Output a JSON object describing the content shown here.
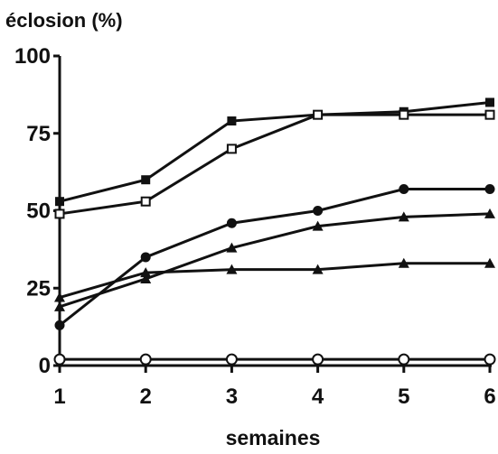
{
  "chart_data": {
    "type": "line",
    "ylabel": "éclosion (%)",
    "xlabel": "semaines",
    "x": [
      1,
      2,
      3,
      4,
      5,
      6
    ],
    "xlim": [
      1,
      6
    ],
    "ylim": [
      0,
      100
    ],
    "xticks": [
      "1",
      "2",
      "3",
      "4",
      "5",
      "6"
    ],
    "yticks": [
      "0",
      "25",
      "50",
      "75",
      "100"
    ],
    "grid": false,
    "legend": "none",
    "series": [
      {
        "marker": "filled-square",
        "values": [
          53,
          60,
          79,
          81,
          82,
          85
        ]
      },
      {
        "marker": "open-square",
        "values": [
          49,
          53,
          70,
          81,
          81,
          81
        ]
      },
      {
        "marker": "filled-circle",
        "values": [
          13,
          35,
          46,
          50,
          57,
          57
        ]
      },
      {
        "marker": "filled-triangle",
        "values": [
          19,
          28,
          38,
          45,
          48,
          49
        ]
      },
      {
        "marker": "filled-triangle",
        "values": [
          22,
          30,
          31,
          31,
          33,
          33
        ]
      },
      {
        "marker": "open-circle",
        "values": [
          2,
          2,
          2,
          2,
          2,
          2
        ]
      }
    ],
    "colors": {
      "ink": "#111111",
      "background": "#ffffff"
    }
  }
}
